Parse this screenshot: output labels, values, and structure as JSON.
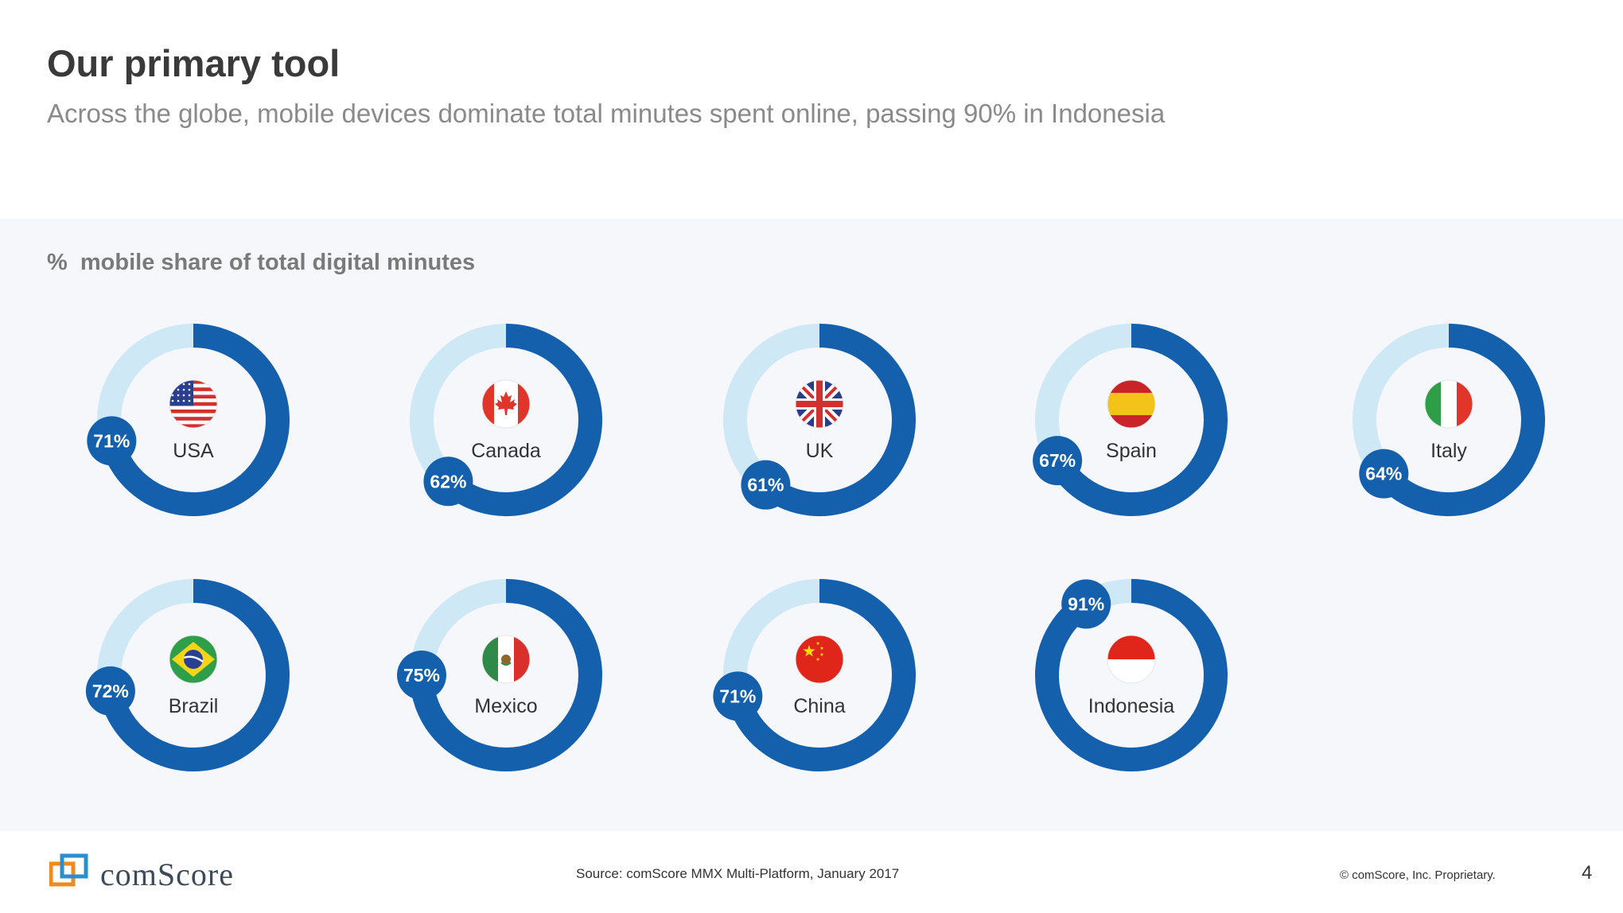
{
  "header": {
    "title": "Our primary tool",
    "subtitle": "Across the globe, mobile devices dominate total minutes spent online, passing 90% in Indonesia"
  },
  "colors": {
    "ring": "#1560ac",
    "track": "#cfe8f6",
    "panel": "#f6f7fb",
    "badge_text": "#ffffff"
  },
  "chart_data": {
    "type": "donut",
    "title": "%  mobile share of total digital minutes",
    "unit": "%",
    "items": [
      {
        "country": "USA",
        "value": 71,
        "label": "71%",
        "flag": "usa-flag-icon"
      },
      {
        "country": "Canada",
        "value": 62,
        "label": "62%",
        "flag": "canada-flag-icon"
      },
      {
        "country": "UK",
        "value": 61,
        "label": "61%",
        "flag": "uk-flag-icon"
      },
      {
        "country": "Spain",
        "value": 67,
        "label": "67%",
        "flag": "spain-flag-icon"
      },
      {
        "country": "Italy",
        "value": 64,
        "label": "64%",
        "flag": "italy-flag-icon"
      },
      {
        "country": "Brazil",
        "value": 72,
        "label": "72%",
        "flag": "brazil-flag-icon"
      },
      {
        "country": "Mexico",
        "value": 75,
        "label": "75%",
        "flag": "mexico-flag-icon"
      },
      {
        "country": "China",
        "value": 71,
        "label": "71%",
        "flag": "china-flag-icon"
      },
      {
        "country": "Indonesia",
        "value": 91,
        "label": "91%",
        "flag": "indonesia-flag-icon"
      }
    ]
  },
  "footer": {
    "logo_text": "comScore",
    "source": "Source: comScore MMX Multi-Platform, January 2017",
    "copyright": "© comScore, Inc. Proprietary.",
    "page_number": "4"
  }
}
